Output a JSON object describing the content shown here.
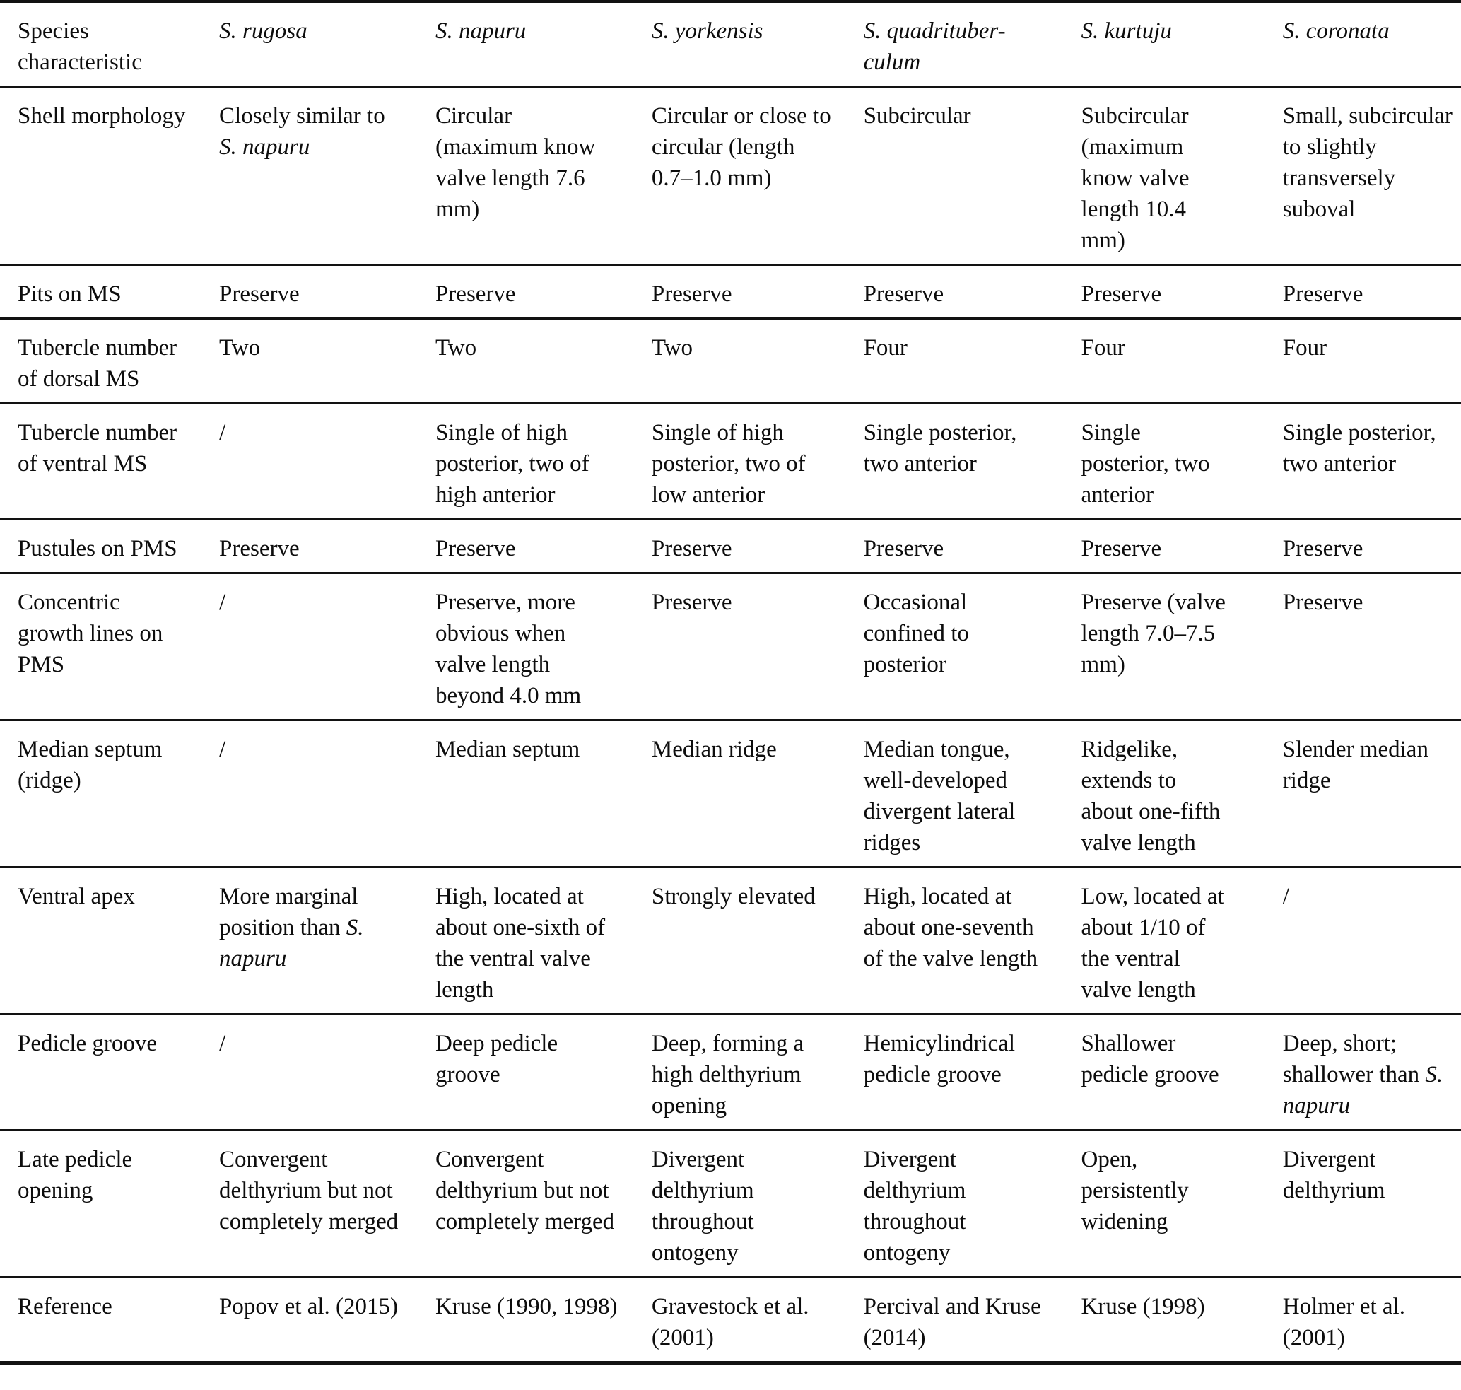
{
  "colors": {
    "text": "#0d0d0d",
    "background": "#ffffff",
    "rule": "#121212"
  },
  "table": {
    "header": {
      "corner": "Species\ncharacteristic",
      "species": [
        "*S. rugosa*",
        "*S. napuru*",
        "*S. yorkensis*",
        "*S. quadrituber-*\n*culum*",
        "*S. kurtuju*",
        "*S. coronata*"
      ]
    },
    "rows": [
      {
        "label": "Shell morphology",
        "cells": [
          "Closely similar to *S. napuru*",
          "Circular (maximum know valve length 7.6 mm)",
          "Circular or close to circular (length 0.7–1.0 mm)",
          "Subcircular",
          "Subcircular (maximum know valve length 10.4 mm)",
          "Small, subcircular to slightly transversely suboval"
        ]
      },
      {
        "label": "Pits on MS",
        "cells": [
          "Preserve",
          "Preserve",
          "Preserve",
          "Preserve",
          "Preserve",
          "Preserve"
        ]
      },
      {
        "label": "Tubercle number of dorsal MS",
        "cells": [
          "Two",
          "Two",
          "Two",
          "Four",
          "Four",
          "Four"
        ]
      },
      {
        "label": "Tubercle number of ventral MS",
        "cells": [
          "/",
          "Single of high posterior, two of high anterior",
          "Single of high posterior, two of low anterior",
          "Single posterior, two anterior",
          "Single posterior, two anterior",
          "Single posterior, two anterior"
        ]
      },
      {
        "label": "Pustules on PMS",
        "cells": [
          "Preserve",
          "Preserve",
          "Preserve",
          "Preserve",
          "Preserve",
          "Preserve"
        ]
      },
      {
        "label": "Concentric growth lines on PMS",
        "cells": [
          "/",
          "Preserve, more obvious when valve length beyond 4.0 mm",
          "Preserve",
          "Occasional confined to posterior",
          "Preserve (valve length 7.0–7.5 mm)",
          "Preserve"
        ]
      },
      {
        "label": "Median septum (ridge)",
        "cells": [
          "/",
          "Median septum",
          "Median ridge",
          "Median tongue, well-developed divergent lateral ridges",
          "Ridgelike, extends to about one-fifth valve length",
          "Slender median ridge"
        ]
      },
      {
        "label": "Ventral apex",
        "cells": [
          "More marginal position than *S. napuru*",
          "High, located at about one-sixth of the ventral valve length",
          "Strongly elevated",
          "High, located at about one-seventh of the valve length",
          "Low, located at about 1/10 of the ventral valve length",
          "/"
        ]
      },
      {
        "label": "Pedicle groove",
        "cells": [
          "/",
          "Deep pedicle groove",
          "Deep, forming a high delthyrium opening",
          "Hemicylindrical pedicle groove",
          "Shallower pedicle groove",
          "Deep, short; shallower than *S. napuru*"
        ]
      },
      {
        "label": "Late pedicle opening",
        "cells": [
          "Convergent delthyrium but not completely merged",
          "Convergent delthyrium but not completely merged",
          "Divergent delthyrium throughout ontogeny",
          "Divergent delthyrium throughout ontogeny",
          "Open, persistently widening",
          "Divergent delthyrium"
        ]
      },
      {
        "label": "Reference",
        "cells": [
          "Popov et al. (2015)",
          "Kruse (1990, 1998)",
          "Gravestock et al. (2001)",
          "Percival and Kruse (2014)",
          "Kruse (1998)",
          "Holmer et al. (2001)"
        ]
      }
    ]
  }
}
